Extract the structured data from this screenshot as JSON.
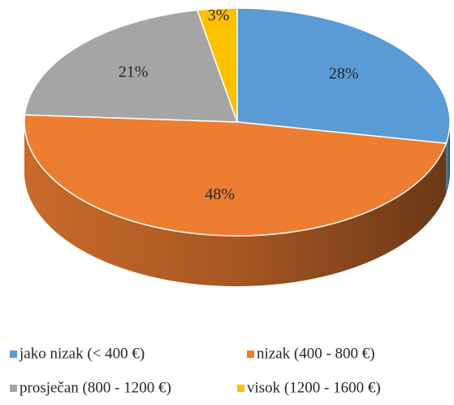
{
  "chart_data": {
    "type": "pie3d",
    "categories": [
      "jako nizak (< 400 €)",
      "nizak (400 - 800 €)",
      "prosječan (800 - 1200 €)",
      "visok (1200 - 1600 €)"
    ],
    "values": [
      28,
      48,
      21,
      3
    ],
    "value_labels": [
      "28%",
      "48%",
      "21%",
      "3%"
    ],
    "colors": [
      "#5b9bd5",
      "#ed7d31",
      "#a5a5a5",
      "#ffc000"
    ],
    "legend": "bottom"
  }
}
